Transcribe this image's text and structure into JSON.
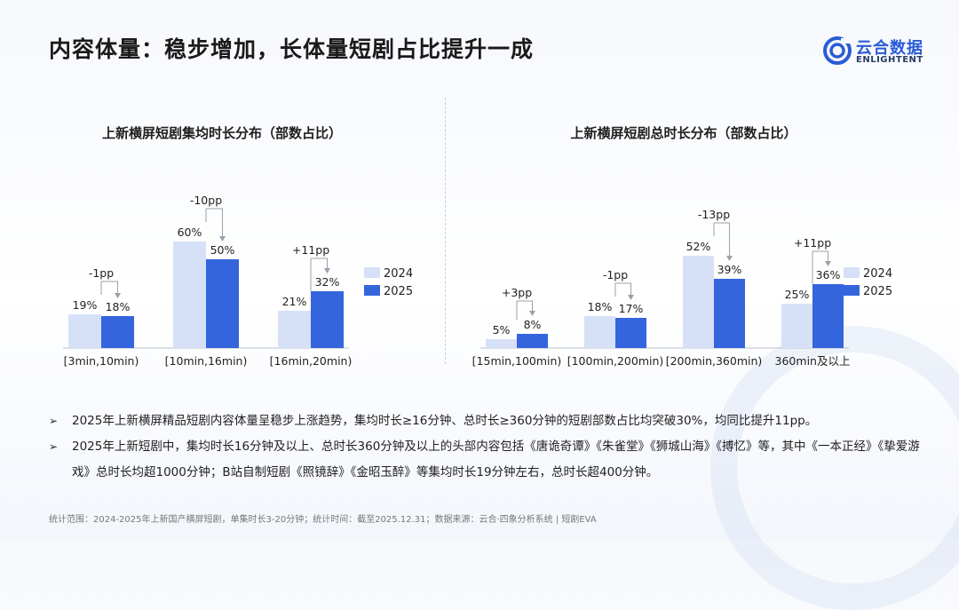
{
  "title": "内容体量：稳步增加，长体量短剧占比提升一成",
  "logo": {
    "cn": "云合数据",
    "en": "ENLIGHTENT"
  },
  "colors": {
    "y2024": "#d6e1f8",
    "y2025": "#3465dc",
    "annot": "#9aa0aa"
  },
  "chart_data": [
    {
      "type": "bar",
      "title": "上新横屏短剧集均时长分布（部数占比）",
      "categories": [
        "[3min,10min)",
        "[10min,16min)",
        "[16min,20min)"
      ],
      "series": [
        {
          "name": "2024",
          "values": [
            19,
            60,
            21
          ],
          "labels": [
            "19%",
            "60%",
            "21%"
          ]
        },
        {
          "name": "2025",
          "values": [
            18,
            50,
            32
          ],
          "labels": [
            "18%",
            "50%",
            "32%"
          ]
        }
      ],
      "annotations": [
        "-1pp",
        "-10pp",
        "+11pp"
      ],
      "ylim": [
        0,
        70
      ],
      "legend_position": "right"
    },
    {
      "type": "bar",
      "title": "上新横屏短剧总时长分布（部数占比）",
      "categories": [
        "[15min,100min)",
        "[100min,200min)",
        "[200min,360min)",
        "360min及以上"
      ],
      "series": [
        {
          "name": "2024",
          "values": [
            5,
            18,
            52,
            25
          ],
          "labels": [
            "5%",
            "18%",
            "52%",
            "25%"
          ]
        },
        {
          "name": "2025",
          "values": [
            8,
            17,
            39,
            36
          ],
          "labels": [
            "8%",
            "17%",
            "39%",
            "36%"
          ]
        }
      ],
      "annotations": [
        "+3pp",
        "-1pp",
        "-13pp",
        "+11pp"
      ],
      "ylim": [
        0,
        60
      ],
      "legend_position": "right"
    }
  ],
  "bullets": [
    "2025年上新横屏精品短剧内容体量呈稳步上涨趋势，集均时长≥16分钟、总时长≥360分钟的短剧部数占比均突破30%，均同比提升11pp。",
    "2025年上新短剧中，集均时长16分钟及以上、总时长360分钟及以上的头部内容包括《唐诡奇谭》《朱雀堂》《狮城山海》《搏忆》等，其中《一本正经》《挚爱游戏》总时长均超1000分钟；B站自制短剧《照镜辞》《金昭玉醉》等集均时长19分钟左右，总时长超400分钟。"
  ],
  "footer": "统计范围：2024-2025年上新国产横屏短剧，单集时长3-20分钟；统计时间：截至2025.12.31；数据来源：云合·四象分析系统 | 短剧EVA"
}
